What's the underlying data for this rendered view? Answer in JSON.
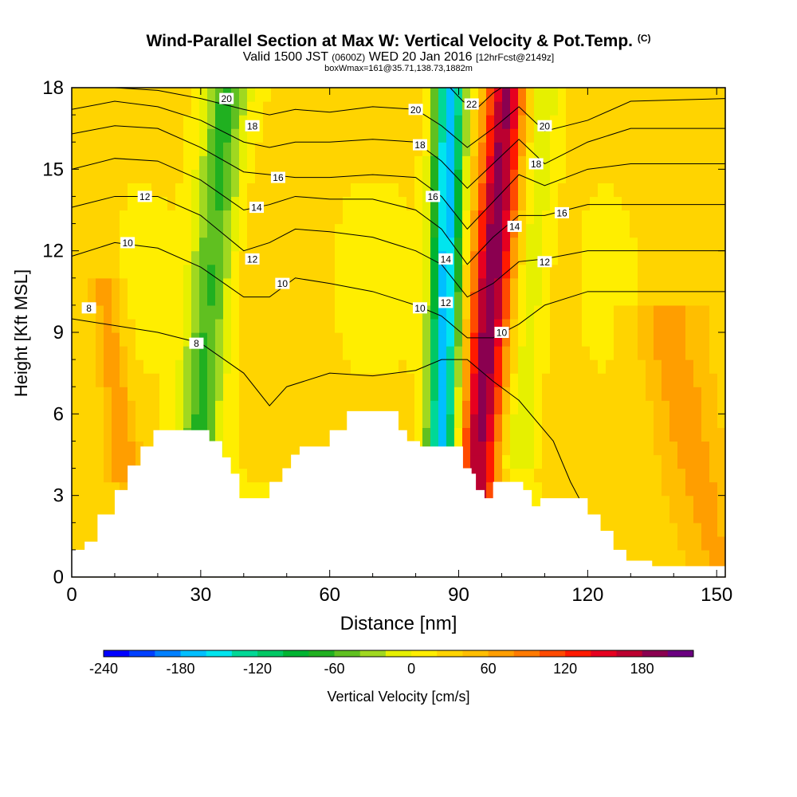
{
  "title": {
    "main": "Wind-Parallel Section at Max W: Vertical Velocity & Pot.Temp.",
    "copyright": "(C)",
    "valid_prefix": "Valid 1500 JST",
    "valid_utc": "(0600Z)",
    "valid_date": "WED 20 Jan 2016",
    "fcst": "[12hrFcst@2149z]",
    "boxwmax": "boxWmax=161@35.71,138.73,1882m"
  },
  "chart_data": {
    "type": "heatmap",
    "title": "Wind-Parallel Section at Max W: Vertical Velocity & Pot.Temp.",
    "xlabel": "Distance [nm]",
    "ylabel": "Height [Kft MSL]",
    "xlim": [
      0,
      152
    ],
    "ylim": [
      0,
      18
    ],
    "x_ticks": [
      0,
      30,
      60,
      90,
      120,
      150
    ],
    "y_ticks": [
      0,
      3,
      6,
      9,
      12,
      15,
      18
    ],
    "colorbar": {
      "label": "Vertical Velocity [cm/s]",
      "range": [
        -240,
        220
      ],
      "step": 20,
      "tick_labels": [
        -240,
        -180,
        -120,
        -60,
        0,
        60,
        120,
        180
      ],
      "colors": [
        "#0000ff",
        "#0040ff",
        "#0080ff",
        "#00bfff",
        "#00e5ee",
        "#00d896",
        "#00c864",
        "#00b432",
        "#20b020",
        "#60c020",
        "#a0d820",
        "#e6f000",
        "#ffee00",
        "#ffd400",
        "#ffbe00",
        "#ff9e00",
        "#ff7a00",
        "#ff4a00",
        "#ff1a00",
        "#e60020",
        "#bb0030",
        "#8a0050",
        "#6a0080"
      ]
    },
    "terrain": [
      [
        0,
        1
      ],
      [
        3,
        1.3
      ],
      [
        6,
        2.3
      ],
      [
        10,
        3.2
      ],
      [
        13,
        4.1
      ],
      [
        16,
        4.8
      ],
      [
        19,
        5.4
      ],
      [
        29,
        5.4
      ],
      [
        32,
        5.0
      ],
      [
        35,
        4.4
      ],
      [
        37,
        3.8
      ],
      [
        39,
        2.9
      ],
      [
        45,
        2.9
      ],
      [
        46,
        3.5
      ],
      [
        49,
        4.0
      ],
      [
        51,
        4.5
      ],
      [
        53,
        4.8
      ],
      [
        57,
        4.8
      ],
      [
        60,
        5.4
      ],
      [
        64,
        6.1
      ],
      [
        74,
        6.1
      ],
      [
        76,
        5.4
      ],
      [
        78,
        5.0
      ],
      [
        81,
        4.8
      ],
      [
        90,
        4.8
      ],
      [
        91,
        4.0
      ],
      [
        93,
        3.8
      ],
      [
        94,
        3.2
      ],
      [
        96,
        2.9
      ],
      [
        98,
        3.5
      ],
      [
        103,
        3.5
      ],
      [
        105,
        3.2
      ],
      [
        107,
        2.6
      ],
      [
        109,
        2.9
      ],
      [
        117,
        2.9
      ],
      [
        120,
        2.3
      ],
      [
        123,
        1.7
      ],
      [
        126,
        1.0
      ],
      [
        129,
        0.6
      ],
      [
        135,
        0.4
      ],
      [
        152,
        0.4
      ]
    ],
    "velocity_features": [
      {
        "x0": 28,
        "x1": 36,
        "z0": 2,
        "z1": 18,
        "w": -90
      },
      {
        "x0": 86,
        "x1": 88,
        "z0": 4,
        "z1": 18,
        "w": -200
      },
      {
        "x0": 94,
        "x1": 101,
        "z0": 3,
        "z1": 18,
        "w": 160
      },
      {
        "x0": 104,
        "x1": 110,
        "z0": 5,
        "z1": 18,
        "w": -40
      },
      {
        "x0": 150,
        "x1": 138,
        "z0": 1,
        "z1": 9,
        "w": 45
      },
      {
        "x0": 12,
        "x1": 8,
        "z0": 4.5,
        "z1": 10,
        "w": 50
      }
    ],
    "theta_contours": [
      {
        "label": "8",
        "points": [
          [
            0,
            9.5
          ],
          [
            20,
            9
          ],
          [
            30,
            8.6
          ],
          [
            40,
            7.5
          ],
          [
            46,
            6.3
          ],
          [
            50,
            7.0
          ],
          [
            60,
            7.5
          ],
          [
            70,
            7.4
          ],
          [
            80,
            7.6
          ],
          [
            86,
            8.0
          ],
          [
            92,
            8.0
          ],
          [
            98,
            7.2
          ],
          [
            104,
            6.5
          ],
          [
            112,
            5.0
          ],
          [
            116,
            3.5
          ],
          [
            118,
            2.9
          ]
        ],
        "labels_at": [
          [
            4,
            9.9
          ],
          [
            29,
            8.6
          ]
        ]
      },
      {
        "label": "10",
        "points": [
          [
            0,
            11.8
          ],
          [
            10,
            12.3
          ],
          [
            20,
            12.1
          ],
          [
            30,
            11.4
          ],
          [
            40,
            10.3
          ],
          [
            46,
            10.3
          ],
          [
            52,
            11.0
          ],
          [
            60,
            10.8
          ],
          [
            70,
            10.5
          ],
          [
            80,
            10.0
          ],
          [
            86,
            9.6
          ],
          [
            92,
            8.8
          ],
          [
            98,
            8.8
          ],
          [
            104,
            9.3
          ],
          [
            110,
            10.0
          ],
          [
            120,
            10.5
          ],
          [
            130,
            10.5
          ],
          [
            152,
            10.5
          ]
        ],
        "labels_at": [
          [
            13,
            12.3
          ],
          [
            49,
            10.8
          ],
          [
            81,
            9.9
          ],
          [
            100,
            9.0
          ]
        ]
      },
      {
        "label": "12",
        "points": [
          [
            0,
            13.6
          ],
          [
            10,
            14.0
          ],
          [
            20,
            14.0
          ],
          [
            30,
            13.3
          ],
          [
            40,
            12.0
          ],
          [
            46,
            12.3
          ],
          [
            52,
            12.8
          ],
          [
            60,
            12.7
          ],
          [
            70,
            12.5
          ],
          [
            80,
            12.0
          ],
          [
            86,
            11.5
          ],
          [
            92,
            10.3
          ],
          [
            98,
            10.8
          ],
          [
            104,
            11.6
          ],
          [
            110,
            11.7
          ],
          [
            120,
            12.0
          ],
          [
            130,
            12.0
          ],
          [
            152,
            12.0
          ]
        ],
        "labels_at": [
          [
            17,
            14.0
          ],
          [
            42,
            11.7
          ],
          [
            87,
            10.1
          ],
          [
            110,
            11.6
          ]
        ]
      },
      {
        "label": "14",
        "points": [
          [
            0,
            15.0
          ],
          [
            10,
            15.4
          ],
          [
            20,
            15.3
          ],
          [
            30,
            14.6
          ],
          [
            40,
            13.5
          ],
          [
            46,
            13.7
          ],
          [
            52,
            14.0
          ],
          [
            60,
            13.9
          ],
          [
            70,
            13.9
          ],
          [
            80,
            13.5
          ],
          [
            86,
            12.8
          ],
          [
            92,
            11.5
          ],
          [
            98,
            12.5
          ],
          [
            104,
            13.3
          ],
          [
            110,
            13.3
          ],
          [
            120,
            13.7
          ],
          [
            130,
            13.7
          ],
          [
            152,
            13.7
          ]
        ],
        "labels_at": [
          [
            43,
            13.6
          ],
          [
            87,
            11.7
          ],
          [
            103,
            12.9
          ]
        ]
      },
      {
        "label": "16",
        "points": [
          [
            0,
            16.3
          ],
          [
            10,
            16.6
          ],
          [
            20,
            16.5
          ],
          [
            30,
            15.8
          ],
          [
            40,
            14.9
          ],
          [
            46,
            14.8
          ],
          [
            52,
            14.7
          ],
          [
            60,
            14.7
          ],
          [
            70,
            14.8
          ],
          [
            80,
            14.7
          ],
          [
            86,
            14.0
          ],
          [
            92,
            12.8
          ],
          [
            98,
            13.8
          ],
          [
            104,
            14.8
          ],
          [
            110,
            14.4
          ],
          [
            120,
            15.0
          ],
          [
            130,
            15.2
          ],
          [
            152,
            15.2
          ]
        ],
        "labels_at": [
          [
            48,
            14.7
          ],
          [
            84,
            14.0
          ],
          [
            114,
            13.4
          ]
        ]
      },
      {
        "label": "18",
        "points": [
          [
            0,
            17.2
          ],
          [
            10,
            17.5
          ],
          [
            20,
            17.3
          ],
          [
            30,
            16.8
          ],
          [
            40,
            16.0
          ],
          [
            46,
            15.8
          ],
          [
            52,
            16.0
          ],
          [
            60,
            16.0
          ],
          [
            70,
            16.1
          ],
          [
            80,
            16.0
          ],
          [
            86,
            15.3
          ],
          [
            92,
            14.3
          ],
          [
            98,
            15.2
          ],
          [
            104,
            16.1
          ],
          [
            110,
            15.2
          ],
          [
            120,
            16.0
          ],
          [
            130,
            16.5
          ],
          [
            152,
            16.5
          ]
        ],
        "labels_at": [
          [
            42,
            16.6
          ],
          [
            81,
            15.9
          ],
          [
            108,
            15.2
          ]
        ]
      },
      {
        "label": "20",
        "points": [
          [
            0,
            18.0
          ],
          [
            10,
            18.0
          ],
          [
            20,
            17.9
          ],
          [
            30,
            17.6
          ],
          [
            40,
            17.2
          ],
          [
            46,
            17.0
          ],
          [
            52,
            17.2
          ],
          [
            60,
            17.1
          ],
          [
            70,
            17.3
          ],
          [
            80,
            17.2
          ],
          [
            86,
            16.6
          ],
          [
            92,
            15.8
          ],
          [
            98,
            16.5
          ],
          [
            104,
            17.3
          ],
          [
            110,
            16.4
          ],
          [
            120,
            16.8
          ],
          [
            130,
            17.5
          ],
          [
            152,
            17.6
          ]
        ],
        "labels_at": [
          [
            36,
            17.6
          ],
          [
            80,
            17.2
          ],
          [
            110,
            16.6
          ]
        ]
      },
      {
        "label": "22",
        "points": [
          [
            88,
            18.0
          ],
          [
            91,
            17.5
          ],
          [
            94,
            17.2
          ],
          [
            98,
            17.8
          ],
          [
            100,
            18.0
          ]
        ],
        "labels_at": [
          [
            93,
            17.4
          ]
        ]
      }
    ]
  }
}
